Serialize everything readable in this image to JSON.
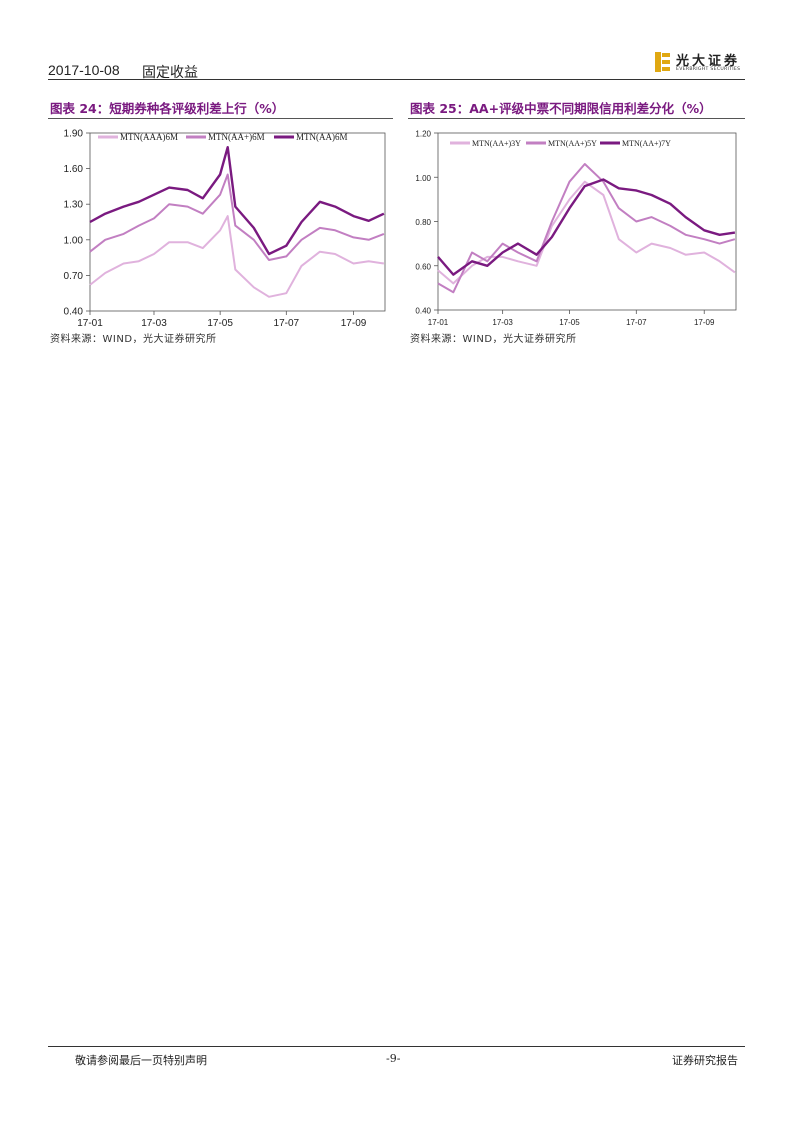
{
  "header": {
    "date": "2017-10-08",
    "section": "固定收益",
    "logo_cn": "光大证券",
    "logo_en": "EVERBRIGHT SECURITIES"
  },
  "source_text": "资料来源：WIND，光大证券研究所",
  "footer": {
    "disclaimer": "敬请参阅最后一页特别声明",
    "page": "-9-",
    "report_type": "证券研究报告"
  },
  "colors": {
    "title": "#7a1a80",
    "light": "#e0b2dd",
    "medium": "#c27fc2",
    "dark": "#7a1a80"
  },
  "chart_data": [
    {
      "id": "left",
      "type": "line",
      "title": "图表 24：短期券种各评级利差上行（%）",
      "xlabel": "",
      "ylabel": "",
      "x": [
        "2017-01-01",
        "2017-01-15",
        "2017-02-01",
        "2017-02-15",
        "2017-03-01",
        "2017-03-15",
        "2017-04-01",
        "2017-04-15",
        "2017-05-01",
        "2017-05-08",
        "2017-05-15",
        "2017-06-01",
        "2017-06-15",
        "2017-07-01",
        "2017-07-15",
        "2017-08-01",
        "2017-08-15",
        "2017-09-01",
        "2017-09-15",
        "2017-09-29"
      ],
      "x_ticks": [
        "17-01",
        "17-03",
        "17-05",
        "17-07",
        "17-09"
      ],
      "x_tick_dates": [
        "2017-01-01",
        "2017-03-01",
        "2017-05-01",
        "2017-07-01",
        "2017-09-01"
      ],
      "y_ticks": [
        "0.40",
        "0.70",
        "1.00",
        "1.30",
        "1.60",
        "1.90"
      ],
      "ylim": [
        0.4,
        1.9
      ],
      "legend_position": "top",
      "series": [
        {
          "name": "MTN(AAA)6M",
          "color": "#e0b2dd",
          "values": [
            0.62,
            0.72,
            0.8,
            0.82,
            0.88,
            0.98,
            0.98,
            0.93,
            1.08,
            1.2,
            0.75,
            0.6,
            0.52,
            0.55,
            0.78,
            0.9,
            0.88,
            0.8,
            0.82,
            0.8
          ]
        },
        {
          "name": "MTN(AA+)6M",
          "color": "#c27fc2",
          "values": [
            0.9,
            1.0,
            1.05,
            1.12,
            1.18,
            1.3,
            1.28,
            1.22,
            1.38,
            1.55,
            1.12,
            1.0,
            0.83,
            0.86,
            1.0,
            1.1,
            1.08,
            1.02,
            1.0,
            1.05
          ]
        },
        {
          "name": "MTN(AA)6M",
          "color": "#7a1a80",
          "values": [
            1.15,
            1.22,
            1.28,
            1.32,
            1.38,
            1.44,
            1.42,
            1.35,
            1.55,
            1.78,
            1.28,
            1.1,
            0.88,
            0.95,
            1.15,
            1.32,
            1.28,
            1.2,
            1.16,
            1.22
          ]
        }
      ]
    },
    {
      "id": "right",
      "type": "line",
      "title": "图表 25：AA+评级中票不同期限信用利差分化（%）",
      "xlabel": "",
      "ylabel": "",
      "x": [
        "2017-01-01",
        "2017-01-15",
        "2017-02-01",
        "2017-02-15",
        "2017-03-01",
        "2017-03-15",
        "2017-04-01",
        "2017-04-15",
        "2017-05-01",
        "2017-05-15",
        "2017-06-01",
        "2017-06-15",
        "2017-07-01",
        "2017-07-15",
        "2017-08-01",
        "2017-08-15",
        "2017-09-01",
        "2017-09-15",
        "2017-09-29"
      ],
      "x_ticks": [
        "17-01",
        "17-03",
        "17-05",
        "17-07",
        "17-09"
      ],
      "x_tick_dates": [
        "2017-01-01",
        "2017-03-01",
        "2017-05-01",
        "2017-07-01",
        "2017-09-01"
      ],
      "y_ticks": [
        "0.40",
        "0.60",
        "0.80",
        "1.00",
        "1.20"
      ],
      "ylim": [
        0.4,
        1.2
      ],
      "legend_position": "top",
      "series": [
        {
          "name": "MTN(AA+)3Y",
          "color": "#e0b2dd",
          "values": [
            0.58,
            0.52,
            0.6,
            0.64,
            0.64,
            0.62,
            0.6,
            0.78,
            0.9,
            0.98,
            0.92,
            0.72,
            0.66,
            0.7,
            0.68,
            0.65,
            0.66,
            0.62,
            0.57
          ]
        },
        {
          "name": "MTN(AA+)5Y",
          "color": "#c27fc2",
          "values": [
            0.52,
            0.48,
            0.66,
            0.62,
            0.7,
            0.66,
            0.62,
            0.8,
            0.98,
            1.06,
            0.98,
            0.86,
            0.8,
            0.82,
            0.78,
            0.74,
            0.72,
            0.7,
            0.72
          ]
        },
        {
          "name": "MTN(AA+)7Y",
          "color": "#7a1a80",
          "values": [
            0.64,
            0.56,
            0.62,
            0.6,
            0.66,
            0.7,
            0.65,
            0.73,
            0.86,
            0.96,
            0.99,
            0.95,
            0.94,
            0.92,
            0.88,
            0.82,
            0.76,
            0.74,
            0.75
          ]
        }
      ]
    }
  ]
}
